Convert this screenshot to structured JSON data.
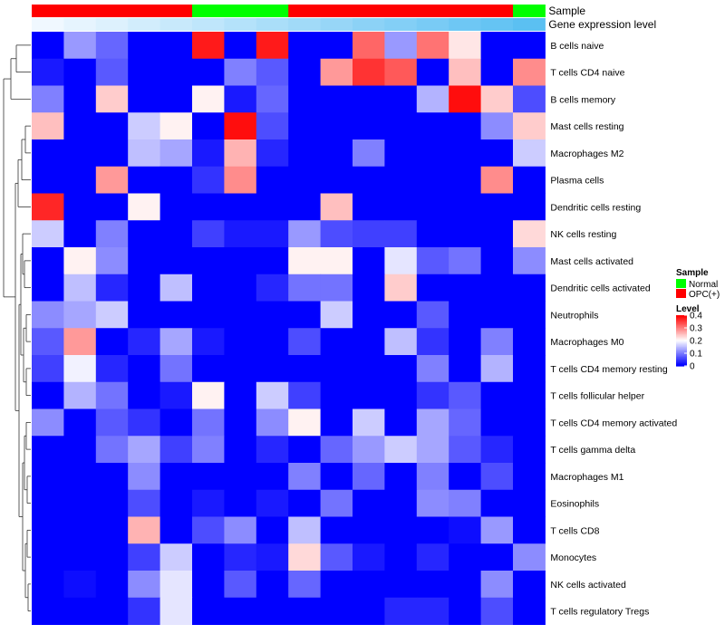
{
  "chart_data": {
    "type": "heatmap",
    "annotation_tracks": [
      "Sample",
      "Gene expression level"
    ],
    "row_labels": [
      "B cells naive",
      "T cells CD4 naive",
      "B cells memory",
      "Mast cells resting",
      "Macrophages M2",
      "Plasma cells",
      "Dendritic cells resting",
      "NK cells resting",
      "Mast cells activated",
      "Dendritic cells activated",
      "Neutrophils",
      "Macrophages M0",
      "T cells CD4 memory resting",
      "T cells follicular helper",
      "T cells CD4 memory activated",
      "T cells gamma delta",
      "Macrophages M1",
      "Eosinophils",
      "T cells CD8",
      "Monocytes",
      "NK cells activated",
      "T cells regulatory  Tregs"
    ],
    "sample_groups": [
      "OPC(+)",
      "OPC(+)",
      "OPC(+)",
      "OPC(+)",
      "OPC(+)",
      "Normal",
      "Normal",
      "Normal",
      "OPC(+)",
      "OPC(+)",
      "OPC(+)",
      "OPC(+)",
      "OPC(+)",
      "OPC(+)",
      "OPC(+)",
      "Normal"
    ],
    "expression_level": [
      0.0,
      0.07,
      0.13,
      0.2,
      0.27,
      0.33,
      0.4,
      0.47,
      0.53,
      0.6,
      0.67,
      0.73,
      0.8,
      0.87,
      0.93,
      1.0
    ],
    "values": [
      [
        0.0,
        0.12,
        0.08,
        0.0,
        0.0,
        0.38,
        0.0,
        0.38,
        0.0,
        0.0,
        0.32,
        0.12,
        0.31,
        0.22,
        0.0,
        0.0
      ],
      [
        0.02,
        0.0,
        0.07,
        0.0,
        0.0,
        0.0,
        0.1,
        0.07,
        0.0,
        0.28,
        0.36,
        0.33,
        0.0,
        0.25,
        0.0,
        0.29
      ],
      [
        0.1,
        0.0,
        0.24,
        0.0,
        0.0,
        0.21,
        0.02,
        0.08,
        0.0,
        0.0,
        0.0,
        0.0,
        0.14,
        0.39,
        0.24,
        0.06
      ],
      [
        0.25,
        0.0,
        0.0,
        0.16,
        0.21,
        0.0,
        0.39,
        0.06,
        0.0,
        0.0,
        0.0,
        0.0,
        0.0,
        0.0,
        0.11,
        0.24
      ],
      [
        0.0,
        0.0,
        0.0,
        0.15,
        0.13,
        0.02,
        0.26,
        0.03,
        0.0,
        0.0,
        0.1,
        0.0,
        0.0,
        0.0,
        0.0,
        0.16
      ],
      [
        0.0,
        0.0,
        0.28,
        0.0,
        0.0,
        0.04,
        0.29,
        0.0,
        0.0,
        0.0,
        0.0,
        0.0,
        0.0,
        0.0,
        0.29,
        0.0
      ],
      [
        0.37,
        0.0,
        0.0,
        0.21,
        0.0,
        0.0,
        0.0,
        0.0,
        0.0,
        0.25,
        0.0,
        0.0,
        0.0,
        0.0,
        0.0,
        0.0
      ],
      [
        0.16,
        0.0,
        0.1,
        0.0,
        0.0,
        0.05,
        0.02,
        0.02,
        0.12,
        0.06,
        0.05,
        0.05,
        0.0,
        0.0,
        0.0,
        0.23
      ],
      [
        0.0,
        0.21,
        0.11,
        0.0,
        0.0,
        0.0,
        0.0,
        0.0,
        0.21,
        0.21,
        0.0,
        0.18,
        0.07,
        0.09,
        0.0,
        0.11
      ],
      [
        0.0,
        0.15,
        0.03,
        0.0,
        0.15,
        0.0,
        0.0,
        0.03,
        0.09,
        0.09,
        0.0,
        0.24,
        0.0,
        0.0,
        0.0,
        0.0
      ],
      [
        0.11,
        0.13,
        0.16,
        0.0,
        0.0,
        0.0,
        0.0,
        0.0,
        0.0,
        0.16,
        0.0,
        0.0,
        0.07,
        0.0,
        0.0,
        0.0
      ],
      [
        0.07,
        0.28,
        0.0,
        0.03,
        0.13,
        0.02,
        0.0,
        0.0,
        0.06,
        0.0,
        0.0,
        0.15,
        0.04,
        0.0,
        0.1,
        0.0
      ],
      [
        0.05,
        0.19,
        0.03,
        0.0,
        0.09,
        0.0,
        0.0,
        0.0,
        0.0,
        0.0,
        0.0,
        0.0,
        0.1,
        0.0,
        0.14,
        0.0
      ],
      [
        0.0,
        0.14,
        0.09,
        0.0,
        0.02,
        0.21,
        0.0,
        0.16,
        0.05,
        0.0,
        0.0,
        0.0,
        0.04,
        0.07,
        0.0,
        0.0
      ],
      [
        0.11,
        0.0,
        0.07,
        0.04,
        0.0,
        0.09,
        0.0,
        0.11,
        0.21,
        0.0,
        0.16,
        0.0,
        0.13,
        0.08,
        0.0,
        0.0
      ],
      [
        0.0,
        0.0,
        0.09,
        0.13,
        0.05,
        0.1,
        0.0,
        0.03,
        0.0,
        0.08,
        0.12,
        0.16,
        0.13,
        0.07,
        0.03,
        0.0
      ],
      [
        0.0,
        0.0,
        0.0,
        0.11,
        0.0,
        0.0,
        0.0,
        0.0,
        0.1,
        0.0,
        0.08,
        0.0,
        0.1,
        0.0,
        0.06,
        0.0
      ],
      [
        0.0,
        0.0,
        0.0,
        0.06,
        0.0,
        0.02,
        0.0,
        0.02,
        0.0,
        0.09,
        0.0,
        0.0,
        0.11,
        0.1,
        0.0,
        0.0
      ],
      [
        0.0,
        0.0,
        0.0,
        0.26,
        0.0,
        0.06,
        0.11,
        0.0,
        0.15,
        0.0,
        0.0,
        0.0,
        0.0,
        0.01,
        0.12,
        0.0
      ],
      [
        0.0,
        0.0,
        0.0,
        0.05,
        0.16,
        0.0,
        0.03,
        0.02,
        0.23,
        0.07,
        0.02,
        0.0,
        0.03,
        0.0,
        0.0,
        0.11
      ],
      [
        0.0,
        0.01,
        0.0,
        0.11,
        0.18,
        0.0,
        0.07,
        0.0,
        0.08,
        0.0,
        0.0,
        0.0,
        0.0,
        0.0,
        0.11,
        0.0
      ],
      [
        0.0,
        0.0,
        0.0,
        0.04,
        0.18,
        0.0,
        0.0,
        0.0,
        0.0,
        0.0,
        0.0,
        0.03,
        0.03,
        0.0,
        0.06,
        0.0
      ]
    ],
    "dendrogram_order_note": "",
    "color_scale": {
      "min": 0,
      "mid": 0.2,
      "max": 0.4,
      "low_color": "#0000ff",
      "mid_color": "#ffffff",
      "high_color": "#ff0000"
    },
    "legend": {
      "sample_title": "Sample",
      "sample_items": [
        {
          "label": "Normal",
          "color": "#00ff00"
        },
        {
          "label": "OPC(+)",
          "color": "#ff0000"
        }
      ],
      "level_title": "Level",
      "level_ticks": [
        "0.4",
        "0.3",
        "0.2",
        "0.1",
        "0"
      ]
    }
  }
}
